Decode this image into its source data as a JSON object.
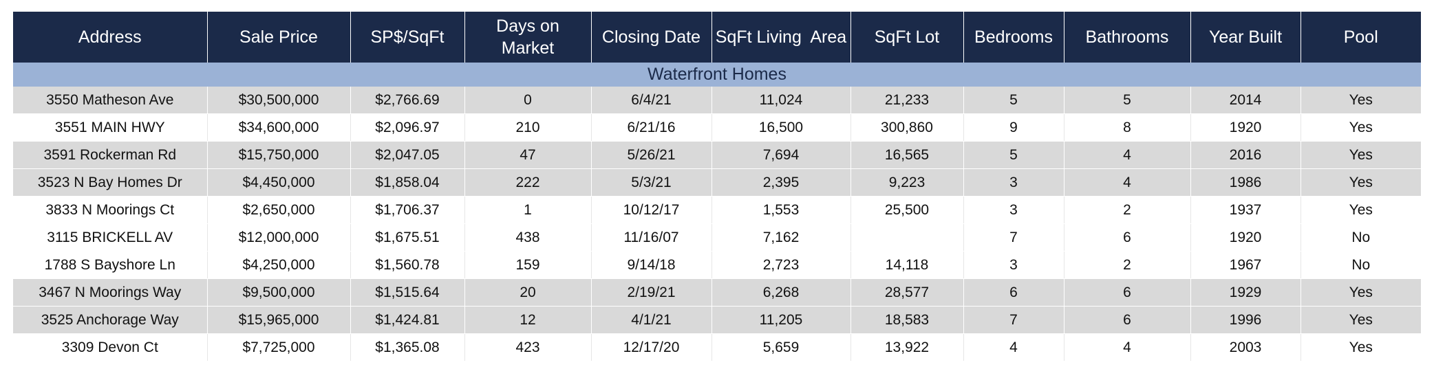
{
  "table": {
    "headers": [
      "Address",
      "Sale Price",
      "SP$/SqFt",
      "Days on Market",
      "Closing Date",
      "SqFt Living  Area",
      "SqFt Lot",
      "Bedrooms",
      "Bathrooms",
      "Year Built",
      "Pool"
    ],
    "section_title": "Waterfront Homes",
    "rows": [
      {
        "shaded": true,
        "cells": [
          "3550 Matheson Ave",
          "$30,500,000",
          "$2,766.69",
          "0",
          "6/4/21",
          "11,024",
          "21,233",
          "5",
          "5",
          "2014",
          "Yes"
        ]
      },
      {
        "shaded": false,
        "cells": [
          "3551 MAIN HWY",
          "$34,600,000",
          "$2,096.97",
          "210",
          "6/21/16",
          "16,500",
          "300,860",
          "9",
          "8",
          "1920",
          "Yes"
        ]
      },
      {
        "shaded": true,
        "cells": [
          "3591 Rockerman Rd",
          "$15,750,000",
          "$2,047.05",
          "47",
          "5/26/21",
          "7,694",
          "16,565",
          "5",
          "4",
          "2016",
          "Yes"
        ]
      },
      {
        "shaded": true,
        "cells": [
          "3523 N Bay Homes Dr",
          "$4,450,000",
          "$1,858.04",
          "222",
          "5/3/21",
          "2,395",
          "9,223",
          "3",
          "4",
          "1986",
          "Yes"
        ]
      },
      {
        "shaded": false,
        "cells": [
          "3833 N Moorings Ct",
          "$2,650,000",
          "$1,706.37",
          "1",
          "10/12/17",
          "1,553",
          "25,500",
          "3",
          "2",
          "1937",
          "Yes"
        ]
      },
      {
        "shaded": false,
        "cells": [
          "3115 BRICKELL AV",
          "$12,000,000",
          "$1,675.51",
          "438",
          "11/16/07",
          "7,162",
          "",
          "7",
          "6",
          "1920",
          "No"
        ]
      },
      {
        "shaded": false,
        "cells": [
          "1788 S Bayshore Ln",
          "$4,250,000",
          "$1,560.78",
          "159",
          "9/14/18",
          "2,723",
          "14,118",
          "3",
          "2",
          "1967",
          "No"
        ]
      },
      {
        "shaded": true,
        "cells": [
          "3467 N Moorings Way",
          "$9,500,000",
          "$1,515.64",
          "20",
          "2/19/21",
          "6,268",
          "28,577",
          "6",
          "6",
          "1929",
          "Yes"
        ]
      },
      {
        "shaded": true,
        "cells": [
          "3525 Anchorage Way",
          "$15,965,000",
          "$1,424.81",
          "12",
          "4/1/21",
          "11,205",
          "18,583",
          "7",
          "6",
          "1996",
          "Yes"
        ]
      },
      {
        "shaded": false,
        "cells": [
          "3309 Devon Ct",
          "$7,725,000",
          "$1,365.08",
          "423",
          "12/17/20",
          "5,659",
          "13,922",
          "4",
          "4",
          "2003",
          "Yes"
        ]
      }
    ]
  }
}
